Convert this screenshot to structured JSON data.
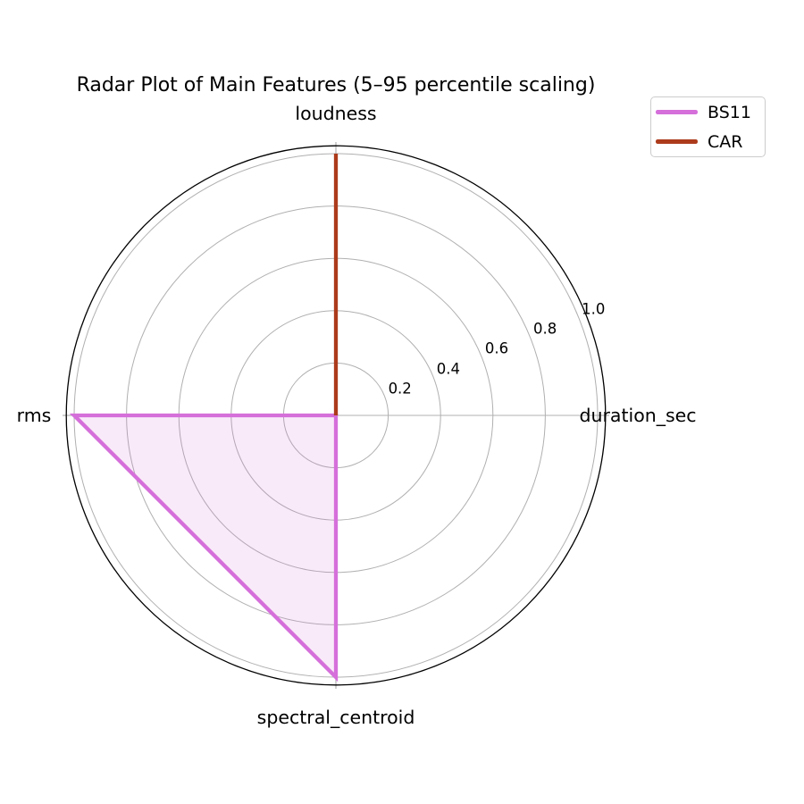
{
  "figure": {
    "title": "Radar Plot of Main Features (5–95 percentile scaling)"
  },
  "chart_data": {
    "type": "radar",
    "title": "Radar Plot of Main Features (5–95 percentile scaling)",
    "categories": [
      {
        "label": "duration_sec",
        "angle_deg": 0
      },
      {
        "label": "loudness",
        "angle_deg": 90
      },
      {
        "label": "rms",
        "angle_deg": 180
      },
      {
        "label": "spectral_centroid",
        "angle_deg": 270
      }
    ],
    "series": [
      {
        "name": "BS11",
        "color": "#d56fda",
        "fill_alpha": 0.15,
        "values": [
          0.0,
          0.0,
          1.0,
          1.0
        ]
      },
      {
        "name": "CAR",
        "color": "#ac3b1c",
        "fill_alpha": 0.15,
        "values": [
          0.0,
          1.0,
          0.0,
          0.0
        ]
      }
    ],
    "r_ticks": [
      0.2,
      0.4,
      0.6,
      0.8,
      1.0
    ],
    "r_max": 1.03,
    "r_tick_angle_deg": 22.5,
    "grid": true,
    "legend_position": "upper right",
    "colors": {
      "grid": "#b0b0b0",
      "spine": "#000000",
      "text": "#000000",
      "legend_border": "#cccccc"
    }
  }
}
